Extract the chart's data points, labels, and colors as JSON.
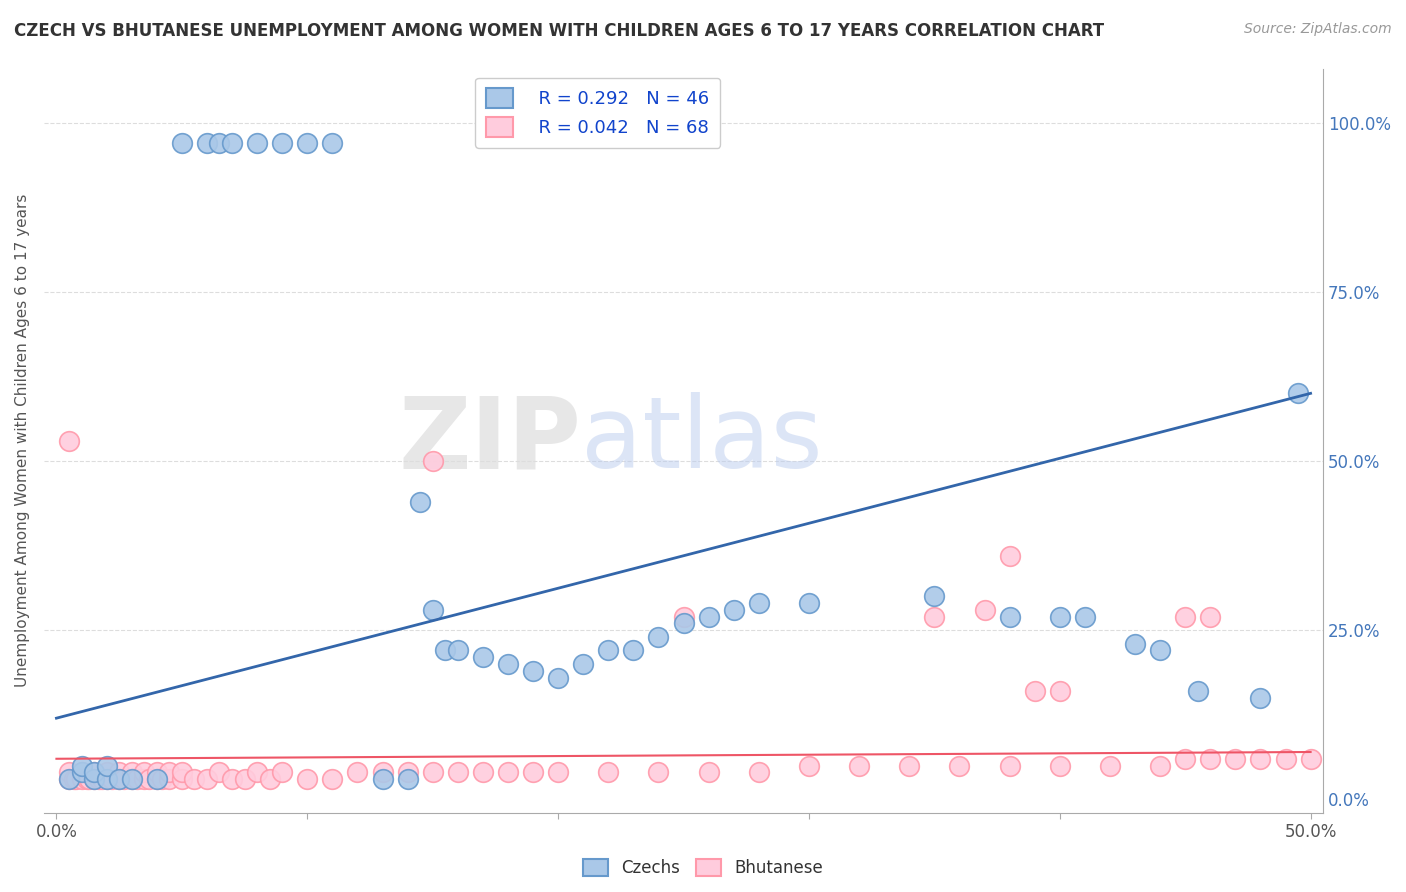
{
  "title": "CZECH VS BHUTANESE UNEMPLOYMENT AMONG WOMEN WITH CHILDREN AGES 6 TO 17 YEARS CORRELATION CHART",
  "source": "Source: ZipAtlas.com",
  "ylabel": "Unemployment Among Women with Children Ages 6 to 17 years",
  "czech_color": "#6699CC",
  "czech_color_fill": "#AAC8E8",
  "bhutanese_color": "#FF99AA",
  "bhutanese_color_fill": "#FFCCDD",
  "trendline_czech_color": "#3366AA",
  "trendline_bhutanese_color": "#EE5566",
  "legend_r_czech": "R = 0.292",
  "legend_n_czech": "N = 46",
  "legend_r_bhutanese": "R = 0.042",
  "legend_n_bhutanese": "N = 68",
  "right_yticks": [
    0.0,
    0.25,
    0.5,
    0.75,
    1.0
  ],
  "right_yticklabels": [
    "0.0%",
    "25.0%",
    "50.0%",
    "75.0%",
    "100.0%"
  ],
  "xlim": [
    -0.005,
    0.505
  ],
  "ylim": [
    -0.02,
    1.08
  ],
  "background_color": "#FFFFFF",
  "grid_color": "#DDDDDD",
  "watermark_zip": "ZIP",
  "watermark_atlas": "atlas",
  "czech_x": [
    0.005,
    0.01,
    0.01,
    0.015,
    0.015,
    0.02,
    0.02,
    0.025,
    0.03,
    0.04,
    0.05,
    0.06,
    0.065,
    0.07,
    0.08,
    0.09,
    0.1,
    0.11,
    0.13,
    0.14,
    0.145,
    0.15,
    0.155,
    0.16,
    0.17,
    0.18,
    0.19,
    0.2,
    0.21,
    0.22,
    0.23,
    0.24,
    0.25,
    0.26,
    0.27,
    0.28,
    0.3,
    0.35,
    0.38,
    0.4,
    0.41,
    0.43,
    0.44,
    0.455,
    0.48,
    0.495
  ],
  "czech_y": [
    0.03,
    0.04,
    0.05,
    0.03,
    0.04,
    0.03,
    0.05,
    0.03,
    0.03,
    0.03,
    0.97,
    0.97,
    0.97,
    0.97,
    0.97,
    0.97,
    0.97,
    0.97,
    0.03,
    0.03,
    0.44,
    0.28,
    0.22,
    0.22,
    0.21,
    0.2,
    0.19,
    0.18,
    0.2,
    0.22,
    0.22,
    0.24,
    0.26,
    0.27,
    0.28,
    0.29,
    0.29,
    0.3,
    0.27,
    0.27,
    0.27,
    0.23,
    0.22,
    0.16,
    0.15,
    0.6
  ],
  "bhutanese_x": [
    0.005,
    0.005,
    0.007,
    0.008,
    0.01,
    0.01,
    0.012,
    0.013,
    0.015,
    0.015,
    0.017,
    0.018,
    0.02,
    0.02,
    0.022,
    0.025,
    0.025,
    0.027,
    0.03,
    0.03,
    0.032,
    0.035,
    0.035,
    0.037,
    0.04,
    0.04,
    0.042,
    0.045,
    0.045,
    0.05,
    0.05,
    0.055,
    0.06,
    0.065,
    0.07,
    0.075,
    0.08,
    0.085,
    0.09,
    0.1,
    0.11,
    0.12,
    0.13,
    0.14,
    0.15,
    0.16,
    0.17,
    0.18,
    0.19,
    0.2,
    0.22,
    0.24,
    0.26,
    0.28,
    0.3,
    0.32,
    0.34,
    0.36,
    0.38,
    0.4,
    0.42,
    0.44,
    0.45,
    0.46,
    0.47,
    0.48,
    0.49,
    0.5
  ],
  "bhutanese_y": [
    0.03,
    0.04,
    0.03,
    0.03,
    0.03,
    0.04,
    0.03,
    0.03,
    0.03,
    0.04,
    0.03,
    0.03,
    0.03,
    0.04,
    0.03,
    0.03,
    0.04,
    0.03,
    0.03,
    0.04,
    0.03,
    0.03,
    0.04,
    0.03,
    0.03,
    0.04,
    0.03,
    0.03,
    0.04,
    0.03,
    0.04,
    0.03,
    0.03,
    0.04,
    0.03,
    0.03,
    0.04,
    0.03,
    0.04,
    0.03,
    0.03,
    0.04,
    0.04,
    0.04,
    0.04,
    0.04,
    0.04,
    0.04,
    0.04,
    0.04,
    0.04,
    0.04,
    0.04,
    0.04,
    0.05,
    0.05,
    0.05,
    0.05,
    0.05,
    0.05,
    0.05,
    0.05,
    0.06,
    0.06,
    0.06,
    0.06,
    0.06,
    0.06
  ],
  "bhutanese_outlier_x": [
    0.005,
    0.15,
    0.25,
    0.35,
    0.37,
    0.38,
    0.39,
    0.4,
    0.45,
    0.46
  ],
  "bhutanese_outlier_y": [
    0.53,
    0.5,
    0.27,
    0.27,
    0.28,
    0.36,
    0.16,
    0.16,
    0.27,
    0.27
  ],
  "czech_trendline": [
    0.12,
    0.6
  ],
  "bhutanese_trendline": [
    0.06,
    0.07
  ]
}
